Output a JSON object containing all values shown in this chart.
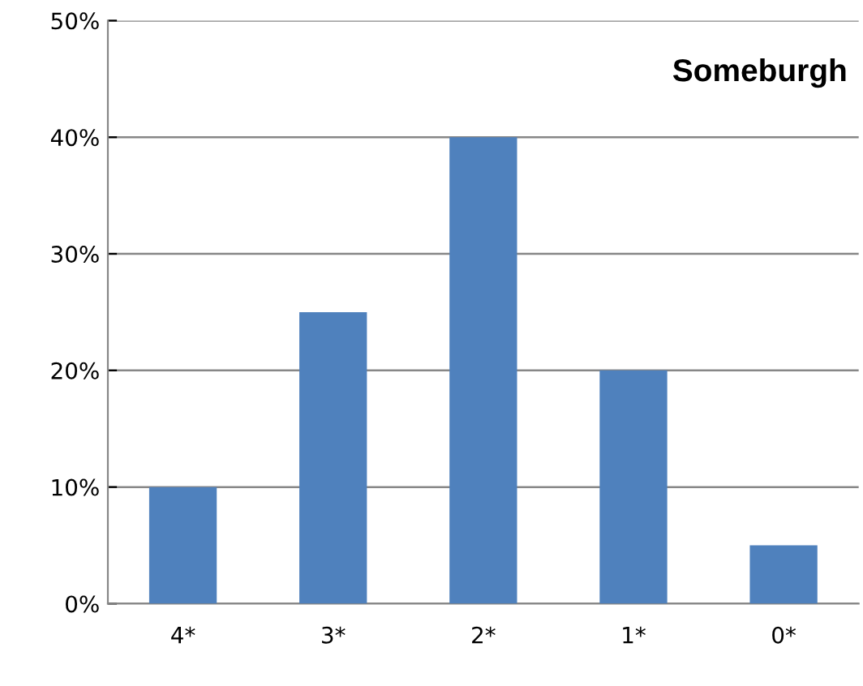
{
  "chart_data": {
    "type": "bar",
    "title": "Someburgh",
    "categories": [
      "4*",
      "3*",
      "2*",
      "1*",
      "0*"
    ],
    "values": [
      10,
      25,
      40,
      20,
      5
    ],
    "color": "#4f81bd",
    "ylim": [
      0,
      50
    ],
    "yticks": [
      {
        "value": 0,
        "label": "0%"
      },
      {
        "value": 10,
        "label": "10%"
      },
      {
        "value": 20,
        "label": "20%"
      },
      {
        "value": 30,
        "label": "30%"
      },
      {
        "value": 40,
        "label": "40%"
      },
      {
        "value": 50,
        "label": "50%"
      }
    ],
    "grid": "y"
  }
}
